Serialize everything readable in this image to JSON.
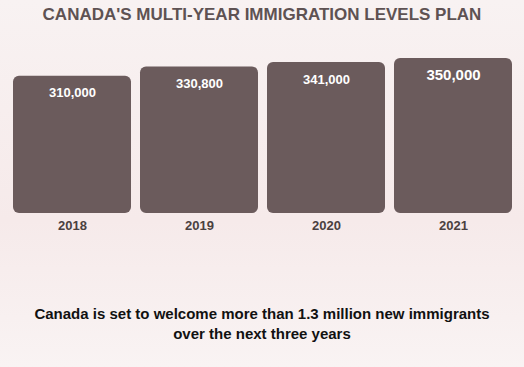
{
  "chart_data": {
    "type": "bar",
    "title": "CANADA'S MULTI-YEAR IMMIGRATION LEVELS PLAN",
    "categories": [
      "2018",
      "2019",
      "2020",
      "2021"
    ],
    "values": [
      310000,
      330800,
      341000,
      350000
    ],
    "value_labels": [
      "310,000",
      "330,800",
      "341,000",
      "350,000"
    ],
    "color": "#6b5b5c",
    "ylim": [
      0,
      350000
    ],
    "data_labels": true,
    "tick_labels": "x",
    "caption": "Canada is set to welcome more than 1.3 million new immigrants over the next three years"
  }
}
